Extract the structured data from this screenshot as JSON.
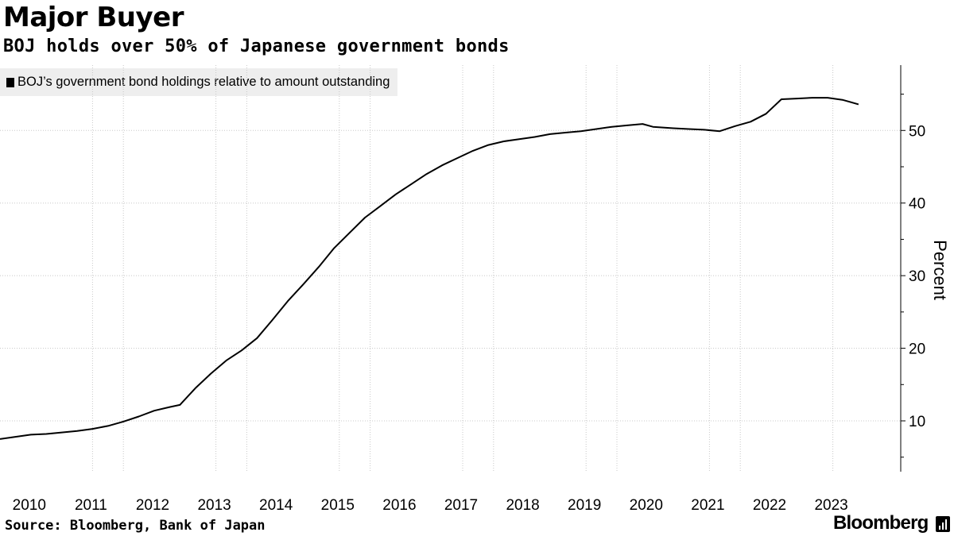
{
  "header": {
    "title": "Major Buyer",
    "subtitle": "BOJ holds over 50% of Japanese government bonds"
  },
  "legend": {
    "label": "BOJ’s government bond holdings relative to amount outstanding"
  },
  "footer": {
    "source": "Source: Bloomberg, Bank of Japan",
    "brand": "Bloomberg",
    "brand_icon": "bar-chart-icon"
  },
  "colors": {
    "line": "#000000",
    "grid": "#c8c8c8",
    "legend_bg": "#eeeeee"
  },
  "chart_data": {
    "type": "line",
    "title": "Major Buyer",
    "subtitle": "BOJ holds over 50% of Japanese government bonds",
    "ylabel": "Percent",
    "xlabel": "",
    "ylim": [
      3,
      59
    ],
    "y_ticks": [
      10,
      20,
      30,
      40,
      50
    ],
    "x_ticks": [
      "2010",
      "2011",
      "2012",
      "2013",
      "2014",
      "2015",
      "2016",
      "2017",
      "2018",
      "2019",
      "2020",
      "2021",
      "2022",
      "2023"
    ],
    "xlim": [
      "2010-01",
      "2024-03"
    ],
    "y_axis_position": "right",
    "grid": "vertical-and-horizontal dotted",
    "legend_position": "top-left",
    "series": [
      {
        "name": "BOJ’s government bond holdings relative to amount outstanding",
        "points": [
          [
            "2010-01",
            7.5
          ],
          [
            "2010-04",
            7.8
          ],
          [
            "2010-07",
            8.1
          ],
          [
            "2010-10",
            8.2
          ],
          [
            "2011-01",
            8.4
          ],
          [
            "2011-04",
            8.6
          ],
          [
            "2011-07",
            8.9
          ],
          [
            "2011-10",
            9.3
          ],
          [
            "2012-01",
            9.9
          ],
          [
            "2012-04",
            10.6
          ],
          [
            "2012-07",
            11.4
          ],
          [
            "2012-10",
            11.9
          ],
          [
            "2012-12",
            12.2
          ],
          [
            "2013-03",
            14.5
          ],
          [
            "2013-06",
            16.5
          ],
          [
            "2013-09",
            18.3
          ],
          [
            "2013-12",
            19.7
          ],
          [
            "2014-03",
            21.4
          ],
          [
            "2014-06",
            23.9
          ],
          [
            "2014-09",
            26.5
          ],
          [
            "2014-12",
            28.8
          ],
          [
            "2015-03",
            31.2
          ],
          [
            "2015-06",
            33.8
          ],
          [
            "2015-09",
            35.9
          ],
          [
            "2015-12",
            38.0
          ],
          [
            "2016-03",
            39.6
          ],
          [
            "2016-06",
            41.2
          ],
          [
            "2016-09",
            42.6
          ],
          [
            "2016-12",
            44.0
          ],
          [
            "2017-03",
            45.2
          ],
          [
            "2017-06",
            46.2
          ],
          [
            "2017-09",
            47.2
          ],
          [
            "2017-12",
            48.0
          ],
          [
            "2018-03",
            48.5
          ],
          [
            "2018-06",
            48.8
          ],
          [
            "2018-09",
            49.1
          ],
          [
            "2018-12",
            49.5
          ],
          [
            "2019-03",
            49.7
          ],
          [
            "2019-06",
            49.9
          ],
          [
            "2019-09",
            50.2
          ],
          [
            "2019-12",
            50.5
          ],
          [
            "2020-03",
            50.7
          ],
          [
            "2020-06",
            50.9
          ],
          [
            "2020-08",
            50.5
          ],
          [
            "2020-12",
            50.3
          ],
          [
            "2021-03",
            50.2
          ],
          [
            "2021-06",
            50.1
          ],
          [
            "2021-09",
            49.9
          ],
          [
            "2021-12",
            50.6
          ],
          [
            "2022-03",
            51.2
          ],
          [
            "2022-06",
            52.3
          ],
          [
            "2022-09",
            54.3
          ],
          [
            "2022-12",
            54.4
          ],
          [
            "2023-03",
            54.5
          ],
          [
            "2023-06",
            54.5
          ],
          [
            "2023-09",
            54.2
          ],
          [
            "2023-12",
            53.6
          ]
        ]
      }
    ]
  }
}
